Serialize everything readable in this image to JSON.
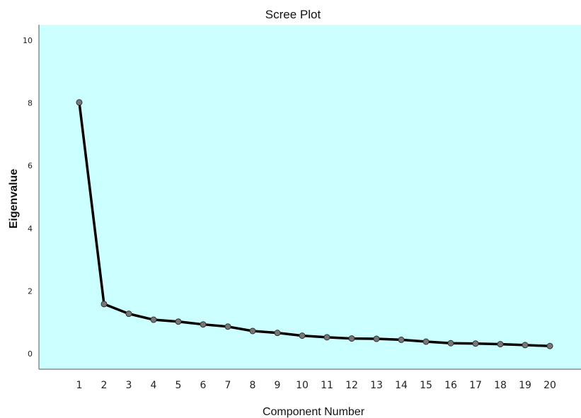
{
  "chart_data": {
    "type": "line",
    "title": "Scree Plot",
    "xlabel": "Component Number",
    "ylabel": "Eigenvalue",
    "x": [
      1,
      2,
      3,
      4,
      5,
      6,
      7,
      8,
      9,
      10,
      11,
      12,
      13,
      14,
      15,
      16,
      17,
      18,
      19,
      20
    ],
    "series": [
      {
        "values": [
          8.02,
          1.58,
          1.27,
          1.08,
          1.02,
          0.93,
          0.86,
          0.72,
          0.66,
          0.57,
          0.52,
          0.48,
          0.47,
          0.44,
          0.38,
          0.33,
          0.32,
          0.3,
          0.27,
          0.24
        ]
      }
    ],
    "ylim": [
      -0.5,
      10.5
    ],
    "yticks": [
      "0",
      "2",
      "4",
      "6",
      "8",
      "10"
    ],
    "xticks": [
      "1",
      "2",
      "3",
      "4",
      "5",
      "6",
      "7",
      "8",
      "9",
      "10",
      "11",
      "12",
      "13",
      "14",
      "15",
      "16",
      "17",
      "18",
      "19",
      "20"
    ],
    "grid": false,
    "legend": "none",
    "colors": {
      "plot_background": "#ccffff",
      "line": "#000000",
      "marker": "#777777"
    }
  }
}
